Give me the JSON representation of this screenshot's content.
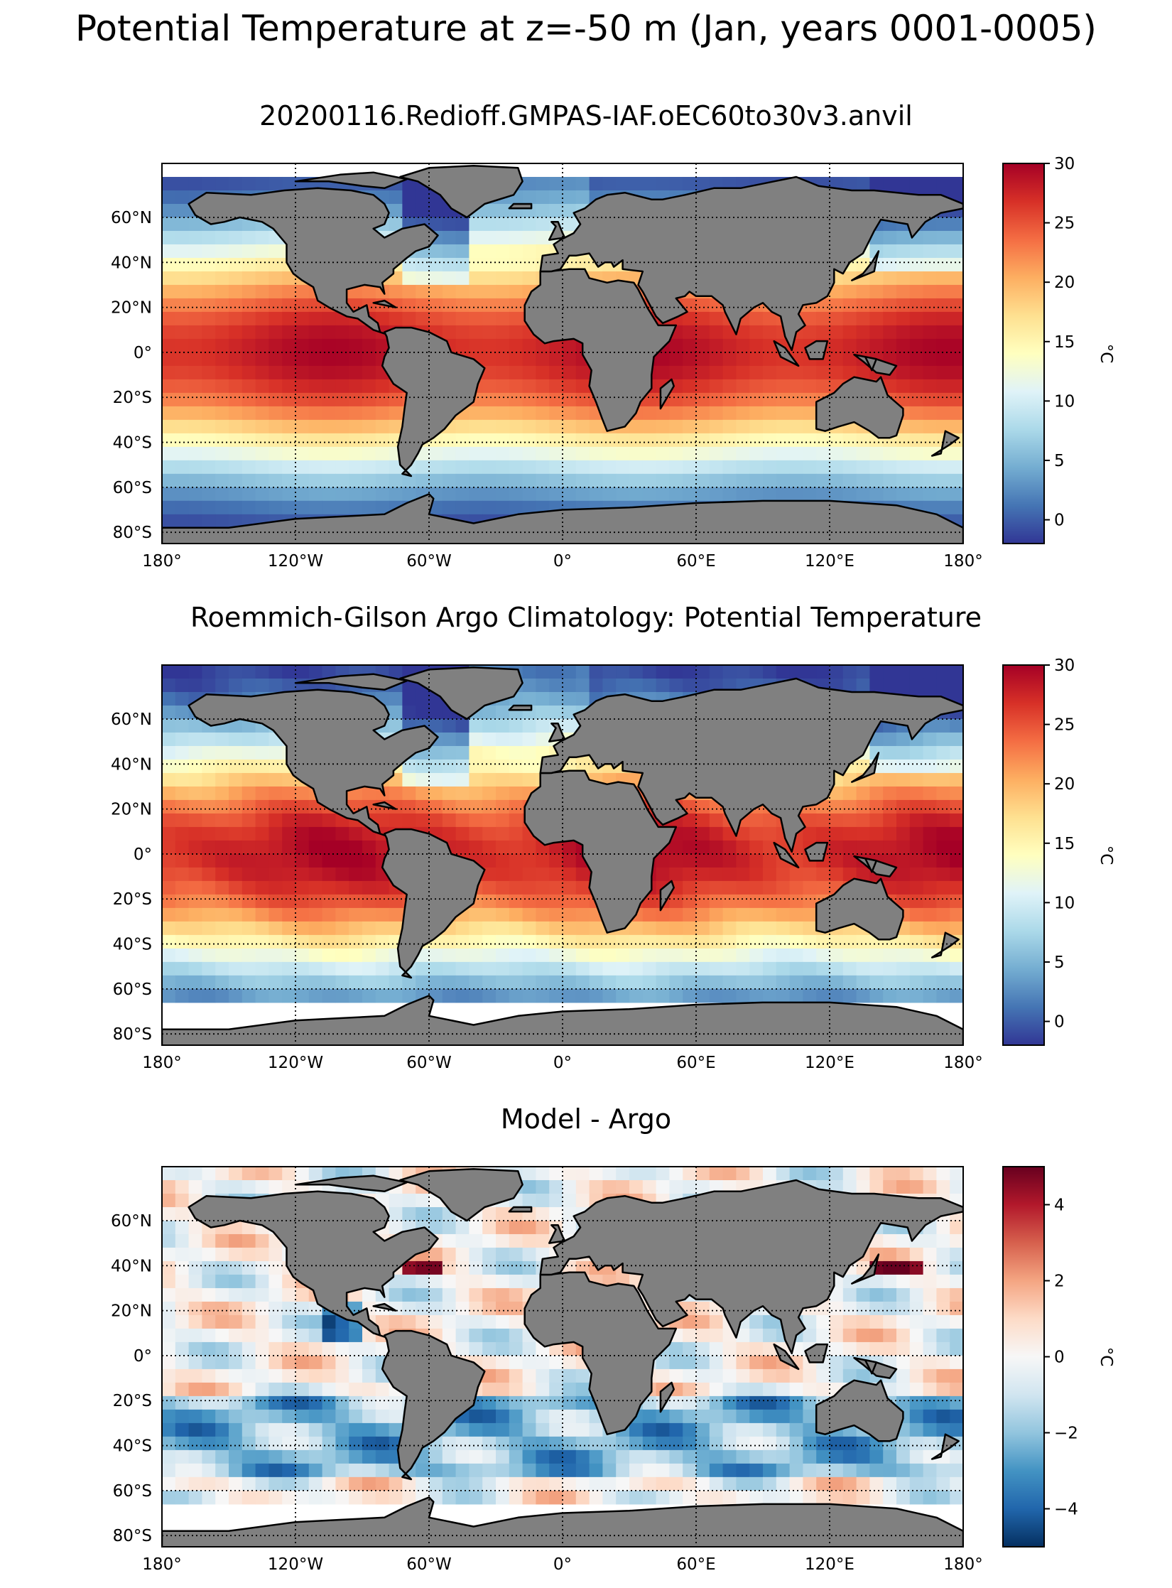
{
  "figure": {
    "suptitle": "Potential Temperature at z=-50 m (Jan, years 0001-0005)"
  },
  "colors": {
    "land": "#808080",
    "nodata": "#ffffff",
    "grid": "#000000",
    "rdylbu_r": [
      "#313695",
      "#4575b4",
      "#74add1",
      "#abd9e9",
      "#e0f3f8",
      "#ffffbf",
      "#fee090",
      "#fdae61",
      "#f46d43",
      "#d73027",
      "#a50026"
    ],
    "rdbu_r": [
      "#053061",
      "#2166ac",
      "#4393c3",
      "#92c5de",
      "#d1e5f0",
      "#f7f7f7",
      "#fddbc7",
      "#f4a582",
      "#d6604d",
      "#b2182b",
      "#67001f"
    ]
  },
  "chart_data": [
    {
      "type": "map",
      "title": "20200116.Redioff.GMPAS-IAF.oEC60to30v3.anvil",
      "projection": "PlateCarree",
      "lon_ticks": [
        "180°",
        "120°W",
        "60°W",
        "0°",
        "60°E",
        "120°E",
        "180°"
      ],
      "lat_ticks": [
        "60°N",
        "40°N",
        "20°N",
        "0°",
        "20°S",
        "40°S",
        "60°S",
        "80°S"
      ],
      "lon_values": [
        -180,
        -120,
        -60,
        0,
        60,
        120,
        180
      ],
      "lat_values": [
        60,
        40,
        20,
        0,
        -20,
        -40,
        -60,
        -80
      ],
      "lat_range": [
        -85,
        84
      ],
      "colorbar": {
        "label": "°C",
        "range": [
          -2,
          30
        ],
        "ticks": [
          30,
          25,
          20,
          15,
          10,
          5,
          0
        ],
        "tick_labels": [
          "30",
          "25",
          "20",
          "15",
          "10",
          "5",
          "0"
        ],
        "colormap": "RdYlBu_r"
      },
      "field": "model_temperature"
    },
    {
      "type": "map",
      "title": "Roemmich-Gilson Argo Climatology: Potential Temperature",
      "projection": "PlateCarree",
      "lon_ticks": [
        "180°",
        "120°W",
        "60°W",
        "0°",
        "60°E",
        "120°E",
        "180°"
      ],
      "lat_ticks": [
        "60°N",
        "40°N",
        "20°N",
        "0°",
        "20°S",
        "40°S",
        "60°S",
        "80°S"
      ],
      "lon_values": [
        -180,
        -120,
        -60,
        0,
        60,
        120,
        180
      ],
      "lat_values": [
        60,
        40,
        20,
        0,
        -20,
        -40,
        -60,
        -80
      ],
      "lat_range": [
        -85,
        84
      ],
      "colorbar": {
        "label": "°C",
        "range": [
          -2,
          30
        ],
        "ticks": [
          30,
          25,
          20,
          15,
          10,
          5,
          0
        ],
        "tick_labels": [
          "30",
          "25",
          "20",
          "15",
          "10",
          "5",
          "0"
        ],
        "colormap": "RdYlBu_r"
      },
      "field": "argo_temperature"
    },
    {
      "type": "map",
      "title": "Model - Argo",
      "projection": "PlateCarree",
      "lon_ticks": [
        "180°",
        "120°W",
        "60°W",
        "0°",
        "60°E",
        "120°E",
        "180°"
      ],
      "lat_ticks": [
        "60°N",
        "40°N",
        "20°N",
        "0°",
        "20°S",
        "40°S",
        "60°S",
        "80°S"
      ],
      "lon_values": [
        -180,
        -120,
        -60,
        0,
        60,
        120,
        180
      ],
      "lat_values": [
        60,
        40,
        20,
        0,
        -20,
        -40,
        -60,
        -80
      ],
      "lat_range": [
        -85,
        84
      ],
      "colorbar": {
        "label": "°C",
        "range": [
          -5,
          5
        ],
        "ticks": [
          4,
          2,
          0,
          -2,
          -4
        ],
        "tick_labels": [
          "4",
          "2",
          "0",
          "−2",
          "−4"
        ],
        "colormap": "RdBu_r"
      },
      "field": "difference"
    }
  ]
}
